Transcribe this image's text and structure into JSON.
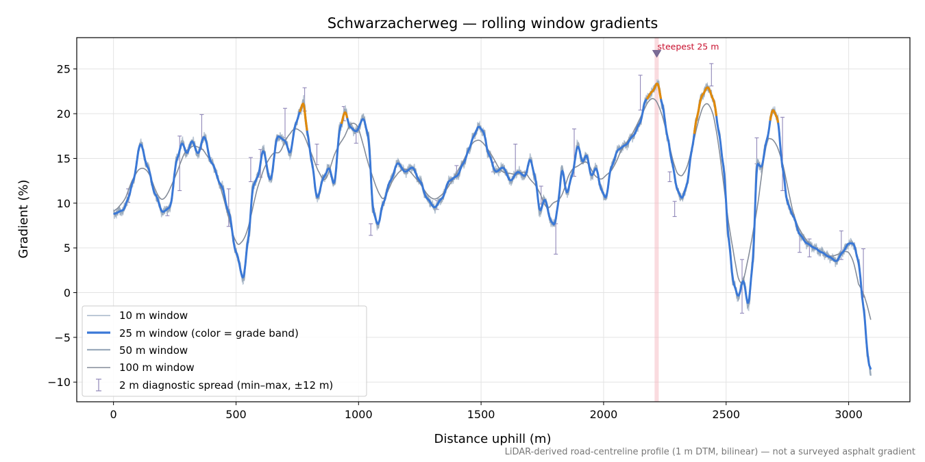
{
  "chart_data": {
    "type": "line",
    "title": "Schwarzacherweg — rolling window gradients",
    "xlabel": "Distance uphill (m)",
    "ylabel": "Gradient (%)",
    "xlim": [
      -150,
      3250
    ],
    "ylim": [
      -12.2,
      28.5
    ],
    "xticks": [
      0,
      500,
      1000,
      1500,
      2000,
      2500,
      3000
    ],
    "yticks": [
      -10,
      -5,
      0,
      5,
      10,
      15,
      20,
      25
    ],
    "ytick_labels": [
      "−10",
      "−5",
      "0",
      "5",
      "10",
      "15",
      "20",
      "25"
    ],
    "grid": true,
    "legend_position": "lower-left",
    "footnote": "LiDAR-derived road-centreline profile (1 m DTM, bilinear) — not a surveyed asphalt gradient",
    "colors": {
      "w10": "#bcc8d6",
      "w25": "#3a78d6",
      "w25_high": "#e08a0b",
      "w50": "#9aaabb",
      "w100": "#848c99",
      "spread": "#8f86b8",
      "highlight": "#f5b8bf",
      "annotation": "#c8102e"
    },
    "anchors": [
      [
        0,
        8.8
      ],
      [
        40,
        9.2
      ],
      [
        60,
        10.5
      ],
      [
        80,
        12.5
      ],
      [
        110,
        16.7
      ],
      [
        140,
        14.0
      ],
      [
        170,
        11.0
      ],
      [
        200,
        9.0
      ],
      [
        230,
        9.5
      ],
      [
        260,
        15.0
      ],
      [
        280,
        16.8
      ],
      [
        300,
        15.5
      ],
      [
        320,
        17.0
      ],
      [
        345,
        15.5
      ],
      [
        370,
        17.5
      ],
      [
        400,
        14.5
      ],
      [
        440,
        12.0
      ],
      [
        470,
        9.0
      ],
      [
        500,
        4.5
      ],
      [
        530,
        1.5
      ],
      [
        550,
        6.0
      ],
      [
        570,
        12.0
      ],
      [
        590,
        13.0
      ],
      [
        610,
        16.0
      ],
      [
        640,
        12.5
      ],
      [
        670,
        17.5
      ],
      [
        700,
        17.0
      ],
      [
        720,
        15.5
      ],
      [
        745,
        19.0
      ],
      [
        765,
        20.5
      ],
      [
        775,
        21.5
      ],
      [
        790,
        18.0
      ],
      [
        810,
        14.5
      ],
      [
        830,
        10.5
      ],
      [
        860,
        13.0
      ],
      [
        880,
        14.0
      ],
      [
        900,
        12.0
      ],
      [
        925,
        18.5
      ],
      [
        945,
        20.3
      ],
      [
        965,
        18.5
      ],
      [
        990,
        18.0
      ],
      [
        1020,
        19.5
      ],
      [
        1040,
        17.5
      ],
      [
        1060,
        9.0
      ],
      [
        1080,
        7.5
      ],
      [
        1100,
        10.0
      ],
      [
        1130,
        12.5
      ],
      [
        1160,
        14.5
      ],
      [
        1190,
        13.5
      ],
      [
        1220,
        14.0
      ],
      [
        1250,
        12.5
      ],
      [
        1280,
        10.5
      ],
      [
        1310,
        9.5
      ],
      [
        1340,
        10.5
      ],
      [
        1370,
        12.5
      ],
      [
        1400,
        13.0
      ],
      [
        1430,
        14.5
      ],
      [
        1450,
        16.0
      ],
      [
        1470,
        17.5
      ],
      [
        1490,
        18.6
      ],
      [
        1510,
        18.0
      ],
      [
        1530,
        15.5
      ],
      [
        1560,
        13.5
      ],
      [
        1590,
        14.0
      ],
      [
        1620,
        12.5
      ],
      [
        1650,
        13.5
      ],
      [
        1680,
        13.0
      ],
      [
        1700,
        15.0
      ],
      [
        1720,
        13.0
      ],
      [
        1740,
        9.0
      ],
      [
        1760,
        10.5
      ],
      [
        1785,
        8.0
      ],
      [
        1800,
        7.5
      ],
      [
        1815,
        10.0
      ],
      [
        1830,
        14.0
      ],
      [
        1850,
        11.0
      ],
      [
        1870,
        13.0
      ],
      [
        1895,
        16.5
      ],
      [
        1915,
        14.5
      ],
      [
        1930,
        15.5
      ],
      [
        1950,
        13.0
      ],
      [
        1970,
        14.0
      ],
      [
        1990,
        11.5
      ],
      [
        2010,
        10.5
      ],
      [
        2030,
        14.0
      ],
      [
        2060,
        16.0
      ],
      [
        2090,
        16.5
      ],
      [
        2120,
        17.5
      ],
      [
        2150,
        19.0
      ],
      [
        2170,
        21.5
      ],
      [
        2200,
        22.5
      ],
      [
        2220,
        23.5
      ],
      [
        2240,
        21.0
      ],
      [
        2260,
        17.5
      ],
      [
        2280,
        14.5
      ],
      [
        2300,
        11.5
      ],
      [
        2320,
        10.5
      ],
      [
        2340,
        12.0
      ],
      [
        2360,
        16.0
      ],
      [
        2380,
        19.5
      ],
      [
        2400,
        22.0
      ],
      [
        2425,
        23.0
      ],
      [
        2450,
        21.5
      ],
      [
        2470,
        18.0
      ],
      [
        2490,
        14.0
      ],
      [
        2510,
        6.0
      ],
      [
        2530,
        1.0
      ],
      [
        2550,
        -0.5
      ],
      [
        2570,
        1.5
      ],
      [
        2590,
        -1.5
      ],
      [
        2610,
        3.5
      ],
      [
        2625,
        14.5
      ],
      [
        2645,
        14.0
      ],
      [
        2665,
        17.0
      ],
      [
        2690,
        20.5
      ],
      [
        2710,
        19.5
      ],
      [
        2730,
        14.0
      ],
      [
        2750,
        10.0
      ],
      [
        2775,
        8.5
      ],
      [
        2800,
        6.5
      ],
      [
        2830,
        5.5
      ],
      [
        2860,
        5.0
      ],
      [
        2890,
        4.5
      ],
      [
        2920,
        4.0
      ],
      [
        2950,
        3.5
      ],
      [
        2975,
        4.5
      ],
      [
        3000,
        5.5
      ],
      [
        3020,
        5.5
      ],
      [
        3040,
        3.5
      ],
      [
        3060,
        -1.5
      ],
      [
        3080,
        -7.5
      ],
      [
        3090,
        -9.0
      ]
    ],
    "series": [
      {
        "name": "10 m window"
      },
      {
        "name": "25 m window (color = grade band)"
      },
      {
        "name": "50 m window"
      },
      {
        "name": "100 m window"
      },
      {
        "name": "2 m diagnostic spread (min–max, ±12 m)"
      }
    ],
    "spread_bars": [
      [
        60,
        10.1,
        11.6
      ],
      [
        220,
        8.6,
        9.6
      ],
      [
        270,
        11.4,
        17.5
      ],
      [
        360,
        16.0,
        19.9
      ],
      [
        470,
        7.4,
        11.6
      ],
      [
        560,
        12.4,
        15.1
      ],
      [
        600,
        12.9,
        16.0
      ],
      [
        700,
        17.3,
        20.6
      ],
      [
        780,
        20.3,
        22.9
      ],
      [
        830,
        14.3,
        16.6
      ],
      [
        940,
        19.2,
        20.8
      ],
      [
        990,
        16.7,
        17.9
      ],
      [
        1050,
        6.4,
        7.7
      ],
      [
        1320,
        9.3,
        10.3
      ],
      [
        1400,
        13.0,
        14.2
      ],
      [
        1550,
        13.5,
        14.6
      ],
      [
        1640,
        13.3,
        16.6
      ],
      [
        1745,
        9.9,
        11.9
      ],
      [
        1805,
        4.3,
        7.7
      ],
      [
        1880,
        13.0,
        18.3
      ],
      [
        2150,
        20.4,
        24.3
      ],
      [
        2270,
        12.4,
        13.5
      ],
      [
        2290,
        8.5,
        10.2
      ],
      [
        2440,
        23.1,
        25.6
      ],
      [
        2565,
        -2.3,
        3.7
      ],
      [
        2625,
        14.4,
        17.3
      ],
      [
        2730,
        11.4,
        19.6
      ],
      [
        2800,
        4.5,
        6.6
      ],
      [
        2840,
        4.0,
        6.0
      ],
      [
        2970,
        3.7,
        6.9
      ],
      [
        3060,
        -0.5,
        4.9
      ]
    ],
    "highlight_band": {
      "x0": 2208,
      "x1": 2225
    },
    "annotation": {
      "text": "steepest 25 m",
      "x": 2217,
      "y": 26.7
    },
    "high_segments": [
      [
        760,
        790
      ],
      [
        930,
        955
      ],
      [
        2175,
        2235
      ],
      [
        2370,
        2460
      ],
      [
        2680,
        2712
      ]
    ]
  }
}
